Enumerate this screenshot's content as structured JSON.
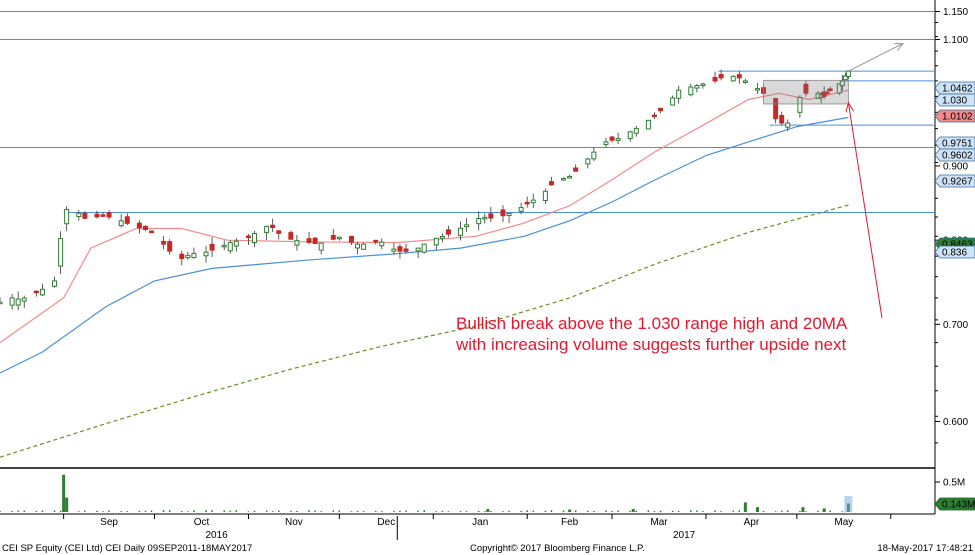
{
  "chart_data": {
    "type": "candlestick",
    "title": "",
    "x_axis": {
      "month_labels": [
        "Sep",
        "Oct",
        "Nov",
        "Dec",
        "Jan",
        "Feb",
        "Mar",
        "Apr",
        "May"
      ],
      "year_labels": [
        "2016",
        "2017"
      ],
      "range": [
        "2016-08-11",
        "2017-05-18"
      ]
    },
    "y_axis": {
      "scale": "log",
      "ylim": [
        0.56,
        1.16
      ],
      "tick_labels": [
        "1.150",
        "1.100",
        "1.000",
        "0.900",
        "0.800",
        "0.700",
        "0.600"
      ],
      "tick_values": [
        1.15,
        1.1,
        1.0,
        0.9,
        0.8,
        0.7,
        0.6
      ],
      "side": "right"
    },
    "horizontal_lines": [
      {
        "value": 1.15,
        "label": "1.150"
      },
      {
        "value": 1.1,
        "label": "1.100"
      },
      {
        "value": 1.03,
        "label": "1.030"
      },
      {
        "value": 0.9602,
        "label": "0.9602"
      },
      {
        "value": 0.9267,
        "label": "0.9267"
      },
      {
        "value": 0.836,
        "label": "0.836"
      }
    ],
    "value_badges": [
      {
        "label": "1.0462",
        "value": 1.0462,
        "color": "#cfe3f7"
      },
      {
        "label": "1.030",
        "value": 1.03,
        "color": "#cfe3f7"
      },
      {
        "label": "1.0102",
        "value": 1.0102,
        "color": "#f28b8b"
      },
      {
        "label": "0.9751",
        "value": 0.9751,
        "color": "#cfe3f7"
      },
      {
        "label": "0.9602",
        "value": 0.9602,
        "color": "#cfe3f7"
      },
      {
        "label": "0.9267",
        "value": 0.9267,
        "color": "#cfe3f7"
      },
      {
        "label": "0.8463",
        "value": 0.8463,
        "color": "#2e7d32"
      },
      {
        "label": "0.836",
        "value": 0.836,
        "color": "#cfe3f7"
      }
    ],
    "close_series": [
      [
        "2016-08-11",
        0.725
      ],
      [
        "2016-08-15",
        0.73
      ],
      [
        "2016-08-18",
        0.728
      ],
      [
        "2016-08-22",
        0.735
      ],
      [
        "2016-08-25",
        0.74
      ],
      [
        "2016-08-29",
        0.75
      ],
      [
        "2016-09-01",
        0.828
      ],
      [
        "2016-09-02",
        0.84
      ],
      [
        "2016-09-06",
        0.835
      ],
      [
        "2016-09-09",
        0.825
      ],
      [
        "2016-09-13",
        0.832
      ],
      [
        "2016-09-16",
        0.83
      ],
      [
        "2016-09-20",
        0.825
      ],
      [
        "2016-09-23",
        0.82
      ],
      [
        "2016-09-27",
        0.815
      ],
      [
        "2016-10-01",
        0.81
      ],
      [
        "2016-10-05",
        0.79
      ],
      [
        "2016-10-09",
        0.775
      ],
      [
        "2016-10-13",
        0.783
      ],
      [
        "2016-10-18",
        0.785
      ],
      [
        "2016-10-22",
        0.79
      ],
      [
        "2016-10-26",
        0.797
      ],
      [
        "2016-10-31",
        0.801
      ],
      [
        "2016-11-04",
        0.811
      ],
      [
        "2016-11-08",
        0.82
      ],
      [
        "2016-11-12",
        0.805
      ],
      [
        "2016-11-16",
        0.8
      ],
      [
        "2016-11-20",
        0.798
      ],
      [
        "2016-11-24",
        0.795
      ],
      [
        "2016-11-28",
        0.8
      ],
      [
        "2016-12-02",
        0.805
      ],
      [
        "2016-12-06",
        0.795
      ],
      [
        "2016-12-10",
        0.795
      ],
      [
        "2016-12-14",
        0.8
      ],
      [
        "2016-12-18",
        0.79
      ],
      [
        "2016-12-22",
        0.785
      ],
      [
        "2016-12-27",
        0.79
      ],
      [
        "2016-12-31",
        0.8
      ],
      [
        "2017-01-05",
        0.806
      ],
      [
        "2017-01-09",
        0.813
      ],
      [
        "2017-01-13",
        0.822
      ],
      [
        "2017-01-17",
        0.83
      ],
      [
        "2017-01-21",
        0.828
      ],
      [
        "2017-01-25",
        0.833
      ],
      [
        "2017-01-29",
        0.84
      ],
      [
        "2017-02-02",
        0.85
      ],
      [
        "2017-02-06",
        0.86
      ],
      [
        "2017-02-10",
        0.878
      ],
      [
        "2017-02-15",
        0.885
      ],
      [
        "2017-02-19",
        0.9
      ],
      [
        "2017-02-23",
        0.92
      ],
      [
        "2017-02-27",
        0.935
      ],
      [
        "2017-03-03",
        0.94
      ],
      [
        "2017-03-07",
        0.95
      ],
      [
        "2017-03-11",
        0.96
      ],
      [
        "2017-03-15",
        0.975
      ],
      [
        "2017-03-19",
        0.99
      ],
      [
        "2017-03-23",
        1.015
      ],
      [
        "2017-03-27",
        1.02
      ],
      [
        "2017-03-31",
        1.025
      ],
      [
        "2017-04-04",
        1.03
      ],
      [
        "2017-04-08",
        1.04
      ],
      [
        "2017-04-12",
        1.035
      ],
      [
        "2017-04-16",
        1.025
      ],
      [
        "2017-04-20",
        1.01
      ],
      [
        "2017-04-24",
        0.97
      ],
      [
        "2017-04-27",
        0.96
      ],
      [
        "2017-04-30",
        0.97
      ],
      [
        "2017-05-03",
        1.02
      ],
      [
        "2017-05-05",
        1.0
      ],
      [
        "2017-05-08",
        1.01
      ],
      [
        "2017-05-10",
        1.005
      ],
      [
        "2017-05-12",
        1.015
      ],
      [
        "2017-05-14",
        1.02
      ],
      [
        "2017-05-16",
        1.03
      ],
      [
        "2017-05-18",
        1.046
      ]
    ],
    "moving_averages": [
      {
        "name": "20MA",
        "color": "#f28b8b",
        "points": [
          [
            "2016-08-11",
            0.68
          ],
          [
            "2016-09-01",
            0.73
          ],
          [
            "2016-09-10",
            0.79
          ],
          [
            "2016-09-25",
            0.815
          ],
          [
            "2016-10-10",
            0.815
          ],
          [
            "2016-10-25",
            0.8
          ],
          [
            "2016-11-20",
            0.798
          ],
          [
            "2016-12-20",
            0.797
          ],
          [
            "2017-01-15",
            0.805
          ],
          [
            "2017-01-31",
            0.822
          ],
          [
            "2017-02-15",
            0.845
          ],
          [
            "2017-02-28",
            0.878
          ],
          [
            "2017-03-15",
            0.92
          ],
          [
            "2017-03-31",
            0.96
          ],
          [
            "2017-04-15",
            1.0
          ],
          [
            "2017-04-25",
            1.01
          ],
          [
            "2017-05-05",
            1.0
          ],
          [
            "2017-05-18",
            1.015
          ]
        ]
      },
      {
        "name": "50MA",
        "color": "#4a90d9",
        "points": [
          [
            "2016-08-11",
            0.648
          ],
          [
            "2016-08-25",
            0.67
          ],
          [
            "2016-09-15",
            0.72
          ],
          [
            "2016-10-01",
            0.75
          ],
          [
            "2016-10-20",
            0.765
          ],
          [
            "2016-11-20",
            0.775
          ],
          [
            "2016-12-20",
            0.783
          ],
          [
            "2017-01-10",
            0.79
          ],
          [
            "2017-01-31",
            0.805
          ],
          [
            "2017-02-15",
            0.825
          ],
          [
            "2017-03-01",
            0.85
          ],
          [
            "2017-03-15",
            0.88
          ],
          [
            "2017-04-01",
            0.915
          ],
          [
            "2017-04-15",
            0.935
          ],
          [
            "2017-05-01",
            0.958
          ],
          [
            "2017-05-18",
            0.972
          ]
        ]
      },
      {
        "name": "200MA",
        "color": "#6b8e23",
        "dashed": true,
        "points": [
          [
            "2016-08-11",
            0.567
          ],
          [
            "2016-09-15",
            0.598
          ],
          [
            "2016-10-15",
            0.625
          ],
          [
            "2016-11-15",
            0.652
          ],
          [
            "2016-12-15",
            0.676
          ],
          [
            "2017-01-15",
            0.698
          ],
          [
            "2017-02-15",
            0.73
          ],
          [
            "2017-03-15",
            0.77
          ],
          [
            "2017-04-15",
            0.81
          ],
          [
            "2017-05-18",
            0.846
          ]
        ]
      }
    ],
    "range_box": {
      "x_start": "2017-04-20",
      "x_end": "2017-05-18",
      "y_low": 0.993,
      "y_high": 1.031
    },
    "projection_arrow": {
      "from": [
        "2017-05-18",
        1.046
      ],
      "to": [
        "2017-06-05",
        1.093
      ]
    },
    "annotation": {
      "lines": [
        "Bullish break above the 1.030 range high and 20MA",
        "with increasing volume suggests further upside next"
      ],
      "target": [
        "2017-05-18",
        0.995
      ]
    },
    "volume": {
      "tick_label": "0.5M",
      "last_value_label": "0.143M",
      "spikes": [
        [
          "2016-09-01",
          0.62
        ],
        [
          "2016-09-02",
          0.24
        ],
        [
          "2017-01-19",
          0.05
        ],
        [
          "2017-02-15",
          0.04
        ],
        [
          "2017-03-08",
          0.05
        ],
        [
          "2017-04-14",
          0.16
        ],
        [
          "2017-04-18",
          0.08
        ],
        [
          "2017-05-03",
          0.08
        ],
        [
          "2017-05-10",
          0.06
        ],
        [
          "2017-05-18",
          0.143
        ]
      ]
    }
  },
  "footer": {
    "left": "CEI SP Equity (CEI Ltd) CEI  Daily 09SEP2011-18MAY2017",
    "center": "Copyright© 2017 Bloomberg Finance L.P.",
    "right": "18-May-2017  17:48:21"
  },
  "colors": {
    "up_candle": "#2e7d32",
    "down_candle": "#c62828",
    "level_line": "#4a90d9",
    "annotation": "#e8152b"
  }
}
